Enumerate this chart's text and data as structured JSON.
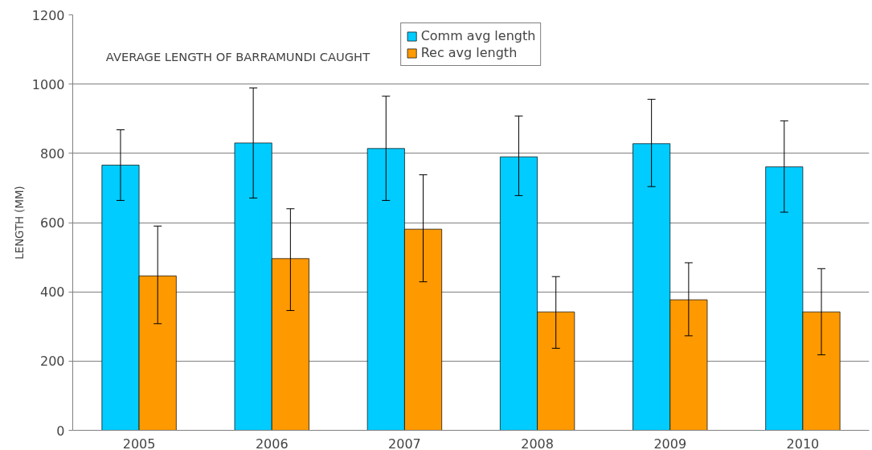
{
  "chart_data": {
    "type": "bar",
    "title": "AVERAGE LENGTH OF BARRAMUNDI CAUGHT",
    "ylabel": "LENGTH (MM)",
    "categories": [
      "2005",
      "2006",
      "2007",
      "2008",
      "2009",
      "2010"
    ],
    "series": [
      {
        "name": "Comm avg length",
        "color": "#00ccff",
        "values": [
          766,
          830,
          814,
          790,
          828,
          761
        ],
        "errors": [
          [
            664,
            868
          ],
          [
            671,
            989
          ],
          [
            664,
            965
          ],
          [
            678,
            908
          ],
          [
            704,
            956
          ],
          [
            630,
            894
          ]
        ]
      },
      {
        "name": "Rec avg length",
        "color": "#ff9900",
        "values": [
          446,
          496,
          581,
          342,
          377,
          342
        ],
        "errors": [
          [
            308,
            590
          ],
          [
            346,
            640
          ],
          [
            429,
            738
          ],
          [
            237,
            444
          ],
          [
            273,
            484
          ],
          [
            218,
            467
          ]
        ]
      }
    ],
    "ylim": [
      0,
      1200
    ],
    "yticks": [
      0,
      200,
      400,
      600,
      800,
      1000,
      1200
    ],
    "grid": "y",
    "legend": "top"
  }
}
